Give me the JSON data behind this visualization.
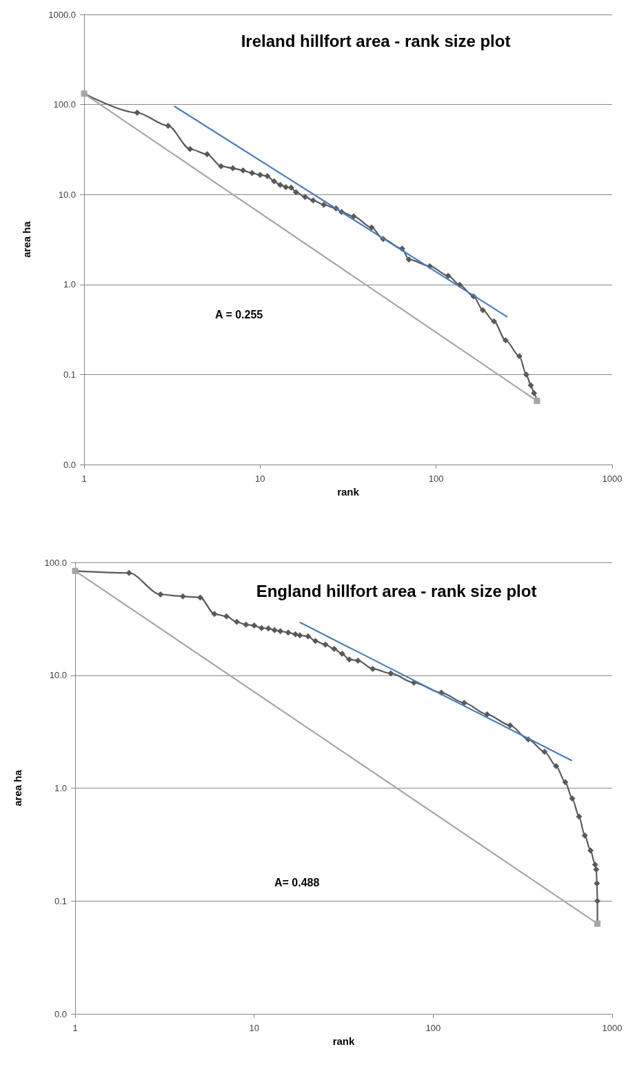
{
  "chart_data": [
    {
      "type": "line",
      "title": "Ireland hillfort area - rank size plot",
      "xlabel": "rank",
      "ylabel": "area ha",
      "log": "xy",
      "grid": "y",
      "xlim": [
        1,
        1000
      ],
      "xticks": [
        1,
        10,
        100,
        1000
      ],
      "ylim": [
        0.01,
        1000
      ],
      "yticks": [
        {
          "value": 0.01,
          "label": "0.0"
        },
        {
          "value": 0.1,
          "label": "0.1"
        },
        {
          "value": 1,
          "label": "1.0"
        },
        {
          "value": 10,
          "label": "10.0"
        },
        {
          "value": 100,
          "label": "100.0"
        },
        {
          "value": 1000,
          "label": "1000.0"
        }
      ],
      "annotations": [
        "A = 0.255"
      ],
      "series": [
        {
          "color": "#595959",
          "marker": "diamond",
          "x": [
            1,
            2,
            3,
            4,
            5,
            6,
            7,
            8,
            9,
            10,
            11,
            12,
            13,
            14,
            15,
            16,
            18,
            20,
            23,
            27,
            29,
            34,
            43,
            50,
            64,
            70,
            92,
            117,
            136,
            163,
            184,
            213,
            248,
            297,
            325,
            345,
            360,
            374
          ],
          "values": [
            132,
            81,
            58,
            32,
            28,
            20.6,
            19.6,
            18.5,
            17.3,
            16.5,
            16.0,
            14.0,
            12.8,
            12.1,
            11.9,
            10.6,
            9.4,
            8.6,
            7.7,
            7.0,
            6.4,
            5.7,
            4.3,
            3.2,
            2.5,
            1.9,
            1.6,
            1.25,
            0.99,
            0.74,
            0.52,
            0.39,
            0.24,
            0.16,
            0.1,
            0.076,
            0.062,
            0.051
          ]
        },
        {
          "color": "#4a7ebb",
          "marker": "none",
          "x": [
            3.27,
            252
          ],
          "values": [
            95,
            0.44
          ]
        },
        {
          "color": "#a6a6a6",
          "marker": "square",
          "x": [
            1,
            374
          ],
          "values": [
            132,
            0.051
          ]
        }
      ]
    },
    {
      "type": "line",
      "title": "England hillfort area - rank size plot",
      "xlabel": "rank",
      "ylabel": "area ha",
      "log": "xy",
      "grid": "y",
      "xlim": [
        1,
        1000
      ],
      "xticks": [
        1,
        10,
        100,
        1000
      ],
      "ylim": [
        0.01,
        100
      ],
      "yticks": [
        {
          "value": 0.01,
          "label": "0.0"
        },
        {
          "value": 0.1,
          "label": "0.1"
        },
        {
          "value": 1,
          "label": "1.0"
        },
        {
          "value": 10,
          "label": "10.0"
        },
        {
          "value": 100,
          "label": "100.0"
        }
      ],
      "annotations": [
        "A= 0.488"
      ],
      "series": [
        {
          "color": "#595959",
          "marker": "diamond",
          "x": [
            1,
            2,
            3,
            4,
            5,
            6,
            7,
            8,
            9,
            10,
            11,
            12,
            13,
            14,
            15.5,
            17,
            18,
            20,
            22,
            25,
            28,
            31,
            34,
            38,
            46,
            58,
            78,
            111,
            149,
            200,
            269,
            340,
            419,
            486,
            547,
            598,
            653,
            703,
            757,
            803,
            815,
            822,
            827,
            827
          ],
          "values": [
            84,
            80.7,
            52,
            50,
            48.9,
            34.9,
            33.3,
            29.7,
            28.1,
            27.6,
            26.2,
            26.0,
            25.1,
            24.6,
            23.9,
            23.1,
            22.6,
            22.1,
            20.1,
            18.7,
            17.1,
            15.5,
            13.8,
            13.5,
            11.4,
            10.4,
            8.6,
            7.0,
            5.7,
            4.5,
            3.6,
            2.7,
            2.1,
            1.57,
            1.13,
            0.81,
            0.56,
            0.38,
            0.28,
            0.21,
            0.19,
            0.143,
            0.1,
            0.063
          ]
        },
        {
          "color": "#4a7ebb",
          "marker": "none",
          "x": [
            18.1,
            592
          ],
          "values": [
            29.3,
            1.76
          ]
        },
        {
          "color": "#a6a6a6",
          "marker": "square",
          "x": [
            1,
            827
          ],
          "values": [
            84,
            0.063
          ]
        }
      ]
    }
  ]
}
